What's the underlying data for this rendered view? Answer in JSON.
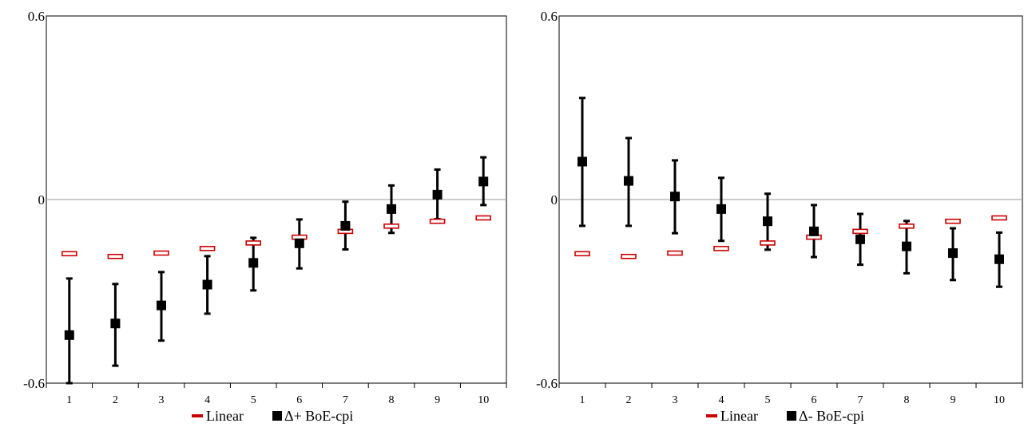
{
  "colors": {
    "linear": "#cc0000",
    "linear_fill": "#ffffff",
    "marker": "#000000",
    "axis": "#000000",
    "zero_line": "#999999"
  },
  "chart_data": [
    {
      "type": "scatter",
      "title": "",
      "xlabel": "",
      "ylabel": "",
      "ylim": [
        -0.6,
        0.6
      ],
      "y_ticks": [
        "0.6",
        "0",
        "-0.6"
      ],
      "x": [
        "1",
        "2",
        "3",
        "4",
        "5",
        "6",
        "7",
        "8",
        "9",
        "10"
      ],
      "grid": false,
      "legend_position": "bottom",
      "series": [
        {
          "name": "Linear",
          "marker": "dash",
          "values": [
            -0.177,
            -0.186,
            -0.175,
            -0.16,
            -0.142,
            -0.123,
            -0.104,
            -0.087,
            -0.071,
            -0.06
          ]
        },
        {
          "name": "Δ+ BoE-cpi",
          "marker": "square",
          "values": [
            -0.443,
            -0.405,
            -0.346,
            -0.278,
            -0.207,
            -0.143,
            -0.086,
            -0.031,
            0.016,
            0.059
          ],
          "error_low": [
            -0.6,
            -0.543,
            -0.461,
            -0.373,
            -0.297,
            -0.225,
            -0.163,
            -0.109,
            -0.064,
            -0.018
          ],
          "error_high": [
            -0.258,
            -0.276,
            -0.237,
            -0.185,
            -0.125,
            -0.065,
            -0.007,
            0.046,
            0.098,
            0.138
          ]
        }
      ]
    },
    {
      "type": "scatter",
      "title": "",
      "xlabel": "",
      "ylabel": "",
      "ylim": [
        -0.6,
        0.6
      ],
      "y_ticks": [
        "0.6",
        "0",
        "-0.6"
      ],
      "x": [
        "1",
        "2",
        "3",
        "4",
        "5",
        "6",
        "7",
        "8",
        "9",
        "10"
      ],
      "grid": false,
      "legend_position": "bottom",
      "series": [
        {
          "name": "Linear",
          "marker": "dash",
          "values": [
            -0.177,
            -0.186,
            -0.175,
            -0.16,
            -0.142,
            -0.123,
            -0.104,
            -0.087,
            -0.071,
            -0.06
          ]
        },
        {
          "name": "Δ- BoE-cpi",
          "marker": "square",
          "values": [
            0.124,
            0.061,
            0.01,
            -0.031,
            -0.071,
            -0.104,
            -0.13,
            -0.153,
            -0.175,
            -0.195
          ],
          "error_low": [
            -0.086,
            -0.086,
            -0.11,
            -0.135,
            -0.164,
            -0.188,
            -0.213,
            -0.241,
            -0.263,
            -0.285
          ],
          "error_high": [
            0.332,
            0.201,
            0.128,
            0.071,
            0.019,
            -0.018,
            -0.047,
            -0.07,
            -0.094,
            -0.108
          ]
        }
      ]
    }
  ]
}
